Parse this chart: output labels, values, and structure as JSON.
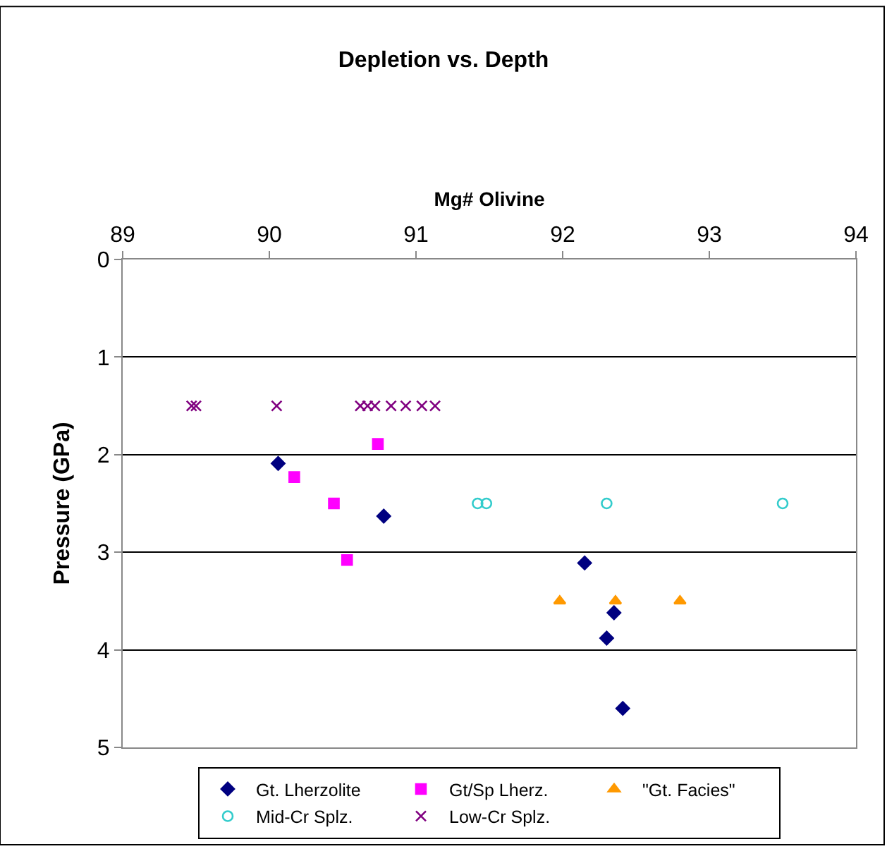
{
  "chart_data": {
    "type": "scatter",
    "title": "Depletion vs. Depth",
    "xlabel": "Mg# Olivine",
    "ylabel": "Pressure (GPa)",
    "xlim": [
      89,
      94
    ],
    "xticks": [
      89,
      90,
      91,
      92,
      93,
      94
    ],
    "ylim": [
      5,
      0
    ],
    "yticks": [
      0,
      1,
      2,
      3,
      4,
      5
    ],
    "grid": "y",
    "legend": "bottom",
    "series": [
      {
        "name": "Gt. Lherzolite",
        "color": "#000080",
        "marker": "diamond",
        "x": [
          90.06,
          90.78,
          92.15,
          92.35,
          92.3,
          92.41
        ],
        "values": [
          2.09,
          2.63,
          3.11,
          3.62,
          3.88,
          4.6
        ]
      },
      {
        "name": "Gt/Sp Lherz.",
        "color": "#ff00ff",
        "marker": "square",
        "x": [
          90.74,
          90.17,
          90.44,
          90.53
        ],
        "values": [
          1.89,
          2.23,
          2.5,
          3.08
        ]
      },
      {
        "name": "\"Gt. Facies\"",
        "color": "#ff9900",
        "marker": "triangle",
        "x": [
          91.98,
          92.36,
          92.8
        ],
        "values": [
          3.5,
          3.5,
          3.5
        ]
      },
      {
        "name": "Mid-Cr Splz.",
        "color": "#33cccc",
        "marker": "circle",
        "x": [
          91.42,
          91.48,
          92.3,
          93.5
        ],
        "values": [
          2.5,
          2.5,
          2.5,
          2.5
        ]
      },
      {
        "name": "Low-Cr Splz.",
        "color": "#800080",
        "marker": "cross",
        "x": [
          89.47,
          89.5,
          90.05,
          90.62,
          90.67,
          90.72,
          90.83,
          90.93,
          91.04,
          91.13
        ],
        "values": [
          1.5,
          1.5,
          1.5,
          1.5,
          1.5,
          1.5,
          1.5,
          1.5,
          1.5,
          1.5
        ]
      }
    ]
  }
}
